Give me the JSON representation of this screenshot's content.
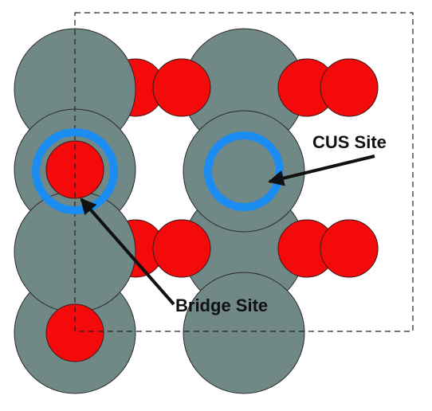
{
  "labels": {
    "cus": "CUS Site",
    "bridge": "Bridge Site"
  },
  "colors": {
    "metal_atom": "#708886",
    "oxygen_atom": "#f40a0a",
    "site_ring": "#1b8cf2",
    "arrow": "#111111",
    "cell_border": "#222222"
  }
}
